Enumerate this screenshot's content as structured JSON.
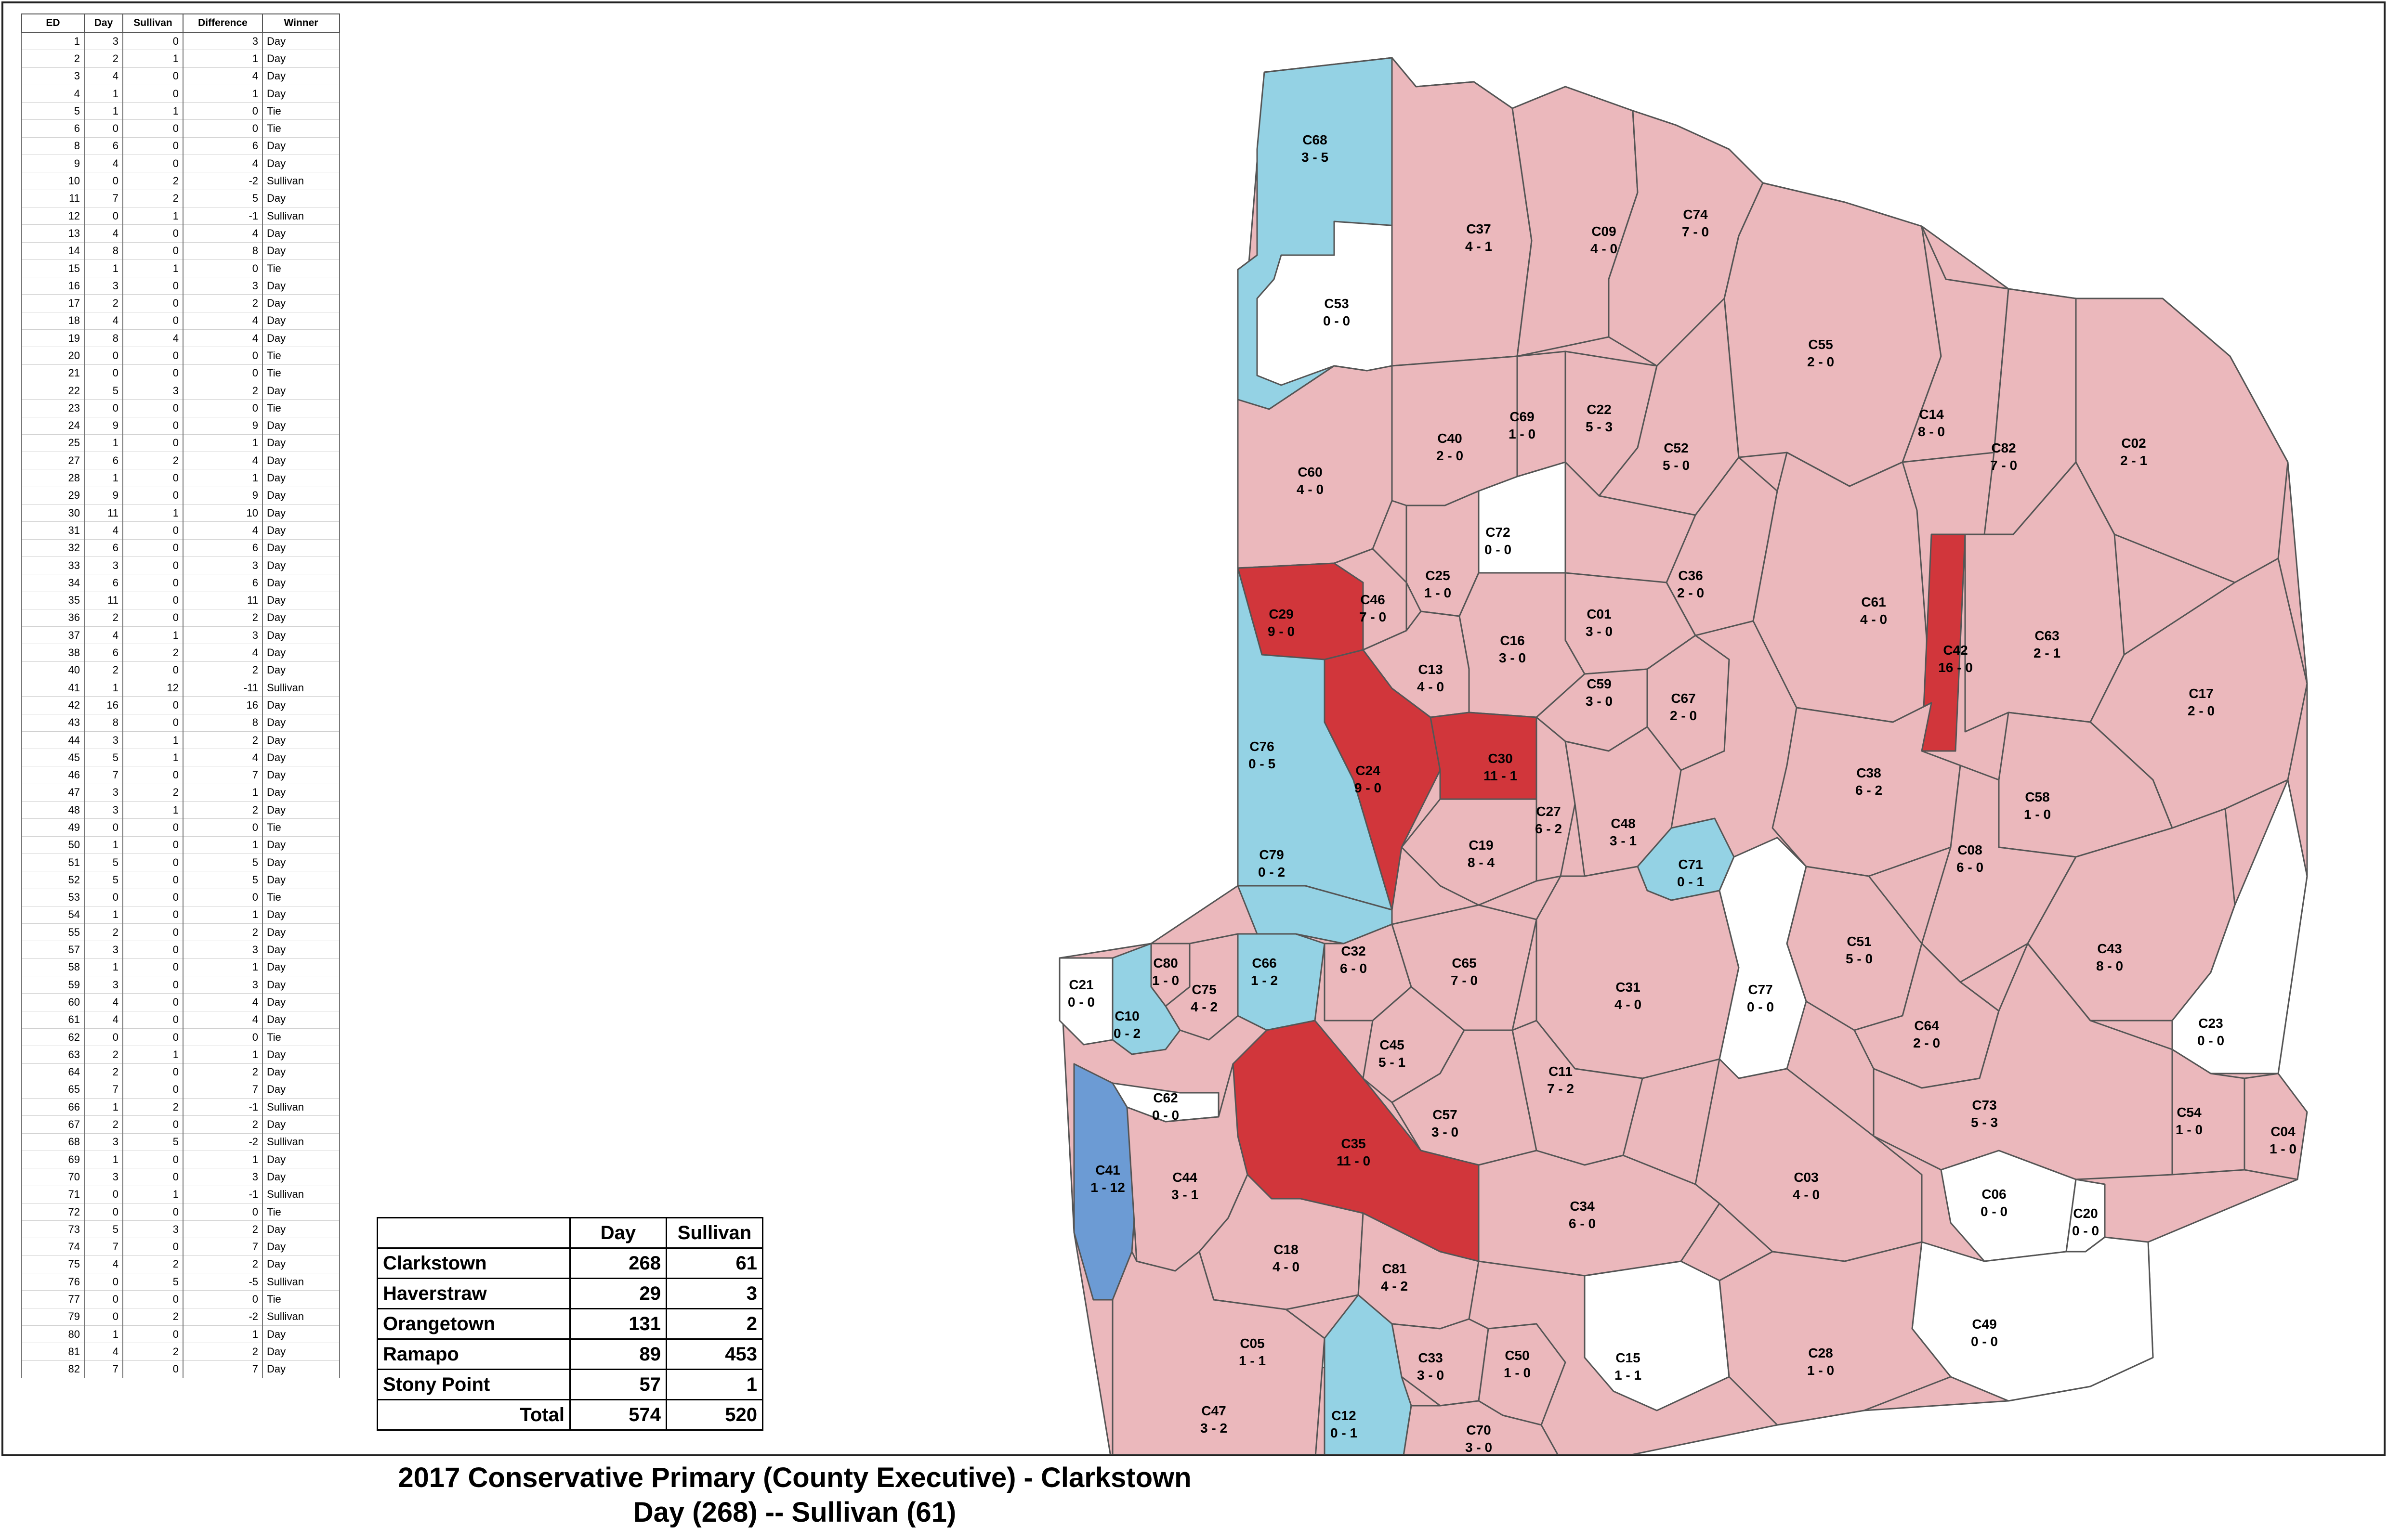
{
  "title": {
    "line1": "2017 Conservative Primary (County Executive) - Clarkstown",
    "line2": "Day (268) -- Sullivan (61)"
  },
  "colors": {
    "day_light": "#ebb8bc",
    "day_strong": "#d1363b",
    "sullivan_light": "#94d2e4",
    "sullivan_strong": "#6c9bd4",
    "tie": "#ffffff"
  },
  "ed_table": {
    "headers": [
      "ED",
      "Day",
      "Sullivan",
      "Difference",
      "Winner"
    ],
    "rows": [
      [
        "1",
        "3",
        "0",
        "3",
        "Day"
      ],
      [
        "2",
        "2",
        "1",
        "1",
        "Day"
      ],
      [
        "3",
        "4",
        "0",
        "4",
        "Day"
      ],
      [
        "4",
        "1",
        "0",
        "1",
        "Day"
      ],
      [
        "5",
        "1",
        "1",
        "0",
        "Tie"
      ],
      [
        "6",
        "0",
        "0",
        "0",
        "Tie"
      ],
      [
        "8",
        "6",
        "0",
        "6",
        "Day"
      ],
      [
        "9",
        "4",
        "0",
        "4",
        "Day"
      ],
      [
        "10",
        "0",
        "2",
        "-2",
        "Sullivan"
      ],
      [
        "11",
        "7",
        "2",
        "5",
        "Day"
      ],
      [
        "12",
        "0",
        "1",
        "-1",
        "Sullivan"
      ],
      [
        "13",
        "4",
        "0",
        "4",
        "Day"
      ],
      [
        "14",
        "8",
        "0",
        "8",
        "Day"
      ],
      [
        "15",
        "1",
        "1",
        "0",
        "Tie"
      ],
      [
        "16",
        "3",
        "0",
        "3",
        "Day"
      ],
      [
        "17",
        "2",
        "0",
        "2",
        "Day"
      ],
      [
        "18",
        "4",
        "0",
        "4",
        "Day"
      ],
      [
        "19",
        "8",
        "4",
        "4",
        "Day"
      ],
      [
        "20",
        "0",
        "0",
        "0",
        "Tie"
      ],
      [
        "21",
        "0",
        "0",
        "0",
        "Tie"
      ],
      [
        "22",
        "5",
        "3",
        "2",
        "Day"
      ],
      [
        "23",
        "0",
        "0",
        "0",
        "Tie"
      ],
      [
        "24",
        "9",
        "0",
        "9",
        "Day"
      ],
      [
        "25",
        "1",
        "0",
        "1",
        "Day"
      ],
      [
        "27",
        "6",
        "2",
        "4",
        "Day"
      ],
      [
        "28",
        "1",
        "0",
        "1",
        "Day"
      ],
      [
        "29",
        "9",
        "0",
        "9",
        "Day"
      ],
      [
        "30",
        "11",
        "1",
        "10",
        "Day"
      ],
      [
        "31",
        "4",
        "0",
        "4",
        "Day"
      ],
      [
        "32",
        "6",
        "0",
        "6",
        "Day"
      ],
      [
        "33",
        "3",
        "0",
        "3",
        "Day"
      ],
      [
        "34",
        "6",
        "0",
        "6",
        "Day"
      ],
      [
        "35",
        "11",
        "0",
        "11",
        "Day"
      ],
      [
        "36",
        "2",
        "0",
        "2",
        "Day"
      ],
      [
        "37",
        "4",
        "1",
        "3",
        "Day"
      ],
      [
        "38",
        "6",
        "2",
        "4",
        "Day"
      ],
      [
        "40",
        "2",
        "0",
        "2",
        "Day"
      ],
      [
        "41",
        "1",
        "12",
        "-11",
        "Sullivan"
      ],
      [
        "42",
        "16",
        "0",
        "16",
        "Day"
      ],
      [
        "43",
        "8",
        "0",
        "8",
        "Day"
      ],
      [
        "44",
        "3",
        "1",
        "2",
        "Day"
      ],
      [
        "45",
        "5",
        "1",
        "4",
        "Day"
      ],
      [
        "46",
        "7",
        "0",
        "7",
        "Day"
      ],
      [
        "47",
        "3",
        "2",
        "1",
        "Day"
      ],
      [
        "48",
        "3",
        "1",
        "2",
        "Day"
      ],
      [
        "49",
        "0",
        "0",
        "0",
        "Tie"
      ],
      [
        "50",
        "1",
        "0",
        "1",
        "Day"
      ],
      [
        "51",
        "5",
        "0",
        "5",
        "Day"
      ],
      [
        "52",
        "5",
        "0",
        "5",
        "Day"
      ],
      [
        "53",
        "0",
        "0",
        "0",
        "Tie"
      ],
      [
        "54",
        "1",
        "0",
        "1",
        "Day"
      ],
      [
        "55",
        "2",
        "0",
        "2",
        "Day"
      ],
      [
        "57",
        "3",
        "0",
        "3",
        "Day"
      ],
      [
        "58",
        "1",
        "0",
        "1",
        "Day"
      ],
      [
        "59",
        "3",
        "0",
        "3",
        "Day"
      ],
      [
        "60",
        "4",
        "0",
        "4",
        "Day"
      ],
      [
        "61",
        "4",
        "0",
        "4",
        "Day"
      ],
      [
        "62",
        "0",
        "0",
        "0",
        "Tie"
      ],
      [
        "63",
        "2",
        "1",
        "1",
        "Day"
      ],
      [
        "64",
        "2",
        "0",
        "2",
        "Day"
      ],
      [
        "65",
        "7",
        "0",
        "7",
        "Day"
      ],
      [
        "66",
        "1",
        "2",
        "-1",
        "Sullivan"
      ],
      [
        "67",
        "2",
        "0",
        "2",
        "Day"
      ],
      [
        "68",
        "3",
        "5",
        "-2",
        "Sullivan"
      ],
      [
        "69",
        "1",
        "0",
        "1",
        "Day"
      ],
      [
        "70",
        "3",
        "0",
        "3",
        "Day"
      ],
      [
        "71",
        "0",
        "1",
        "-1",
        "Sullivan"
      ],
      [
        "72",
        "0",
        "0",
        "0",
        "Tie"
      ],
      [
        "73",
        "5",
        "3",
        "2",
        "Day"
      ],
      [
        "74",
        "7",
        "0",
        "7",
        "Day"
      ],
      [
        "75",
        "4",
        "2",
        "2",
        "Day"
      ],
      [
        "76",
        "0",
        "5",
        "-5",
        "Sullivan"
      ],
      [
        "77",
        "0",
        "0",
        "0",
        "Tie"
      ],
      [
        "79",
        "0",
        "2",
        "-2",
        "Sullivan"
      ],
      [
        "80",
        "1",
        "0",
        "1",
        "Day"
      ],
      [
        "81",
        "4",
        "2",
        "2",
        "Day"
      ],
      [
        "82",
        "7",
        "0",
        "7",
        "Day"
      ]
    ]
  },
  "town_table": {
    "headers": [
      "",
      "Day",
      "Sullivan"
    ],
    "rows": [
      [
        "Clarkstown",
        "268",
        "61"
      ],
      [
        "Haverstraw",
        "29",
        "3"
      ],
      [
        "Orangetown",
        "131",
        "2"
      ],
      [
        "Ramapo",
        "89",
        "453"
      ],
      [
        "Stony Point",
        "57",
        "1"
      ]
    ],
    "total_label": "Total",
    "total_day": "574",
    "total_sullivan": "520"
  },
  "districts": [
    {
      "id": "C68",
      "score": "3 - 5",
      "fill": "sullivan_light"
    },
    {
      "id": "C53",
      "score": "0 - 0",
      "fill": "tie"
    },
    {
      "id": "C37",
      "score": "4 - 1",
      "fill": "day_light"
    },
    {
      "id": "C09",
      "score": "4 - 0",
      "fill": "day_light"
    },
    {
      "id": "C74",
      "score": "7 - 0",
      "fill": "day_light"
    },
    {
      "id": "C55",
      "score": "2 - 0",
      "fill": "day_light"
    },
    {
      "id": "C14",
      "score": "8 - 0",
      "fill": "day_light"
    },
    {
      "id": "C82",
      "score": "7 - 0",
      "fill": "day_light"
    },
    {
      "id": "C02",
      "score": "2 - 1",
      "fill": "day_light"
    },
    {
      "id": "C60",
      "score": "4 - 0",
      "fill": "day_light"
    },
    {
      "id": "C40",
      "score": "2 - 0",
      "fill": "day_light"
    },
    {
      "id": "C69",
      "score": "1 - 0",
      "fill": "day_light"
    },
    {
      "id": "C22",
      "score": "5 - 3",
      "fill": "day_light"
    },
    {
      "id": "C52",
      "score": "5 - 0",
      "fill": "day_light"
    },
    {
      "id": "C72",
      "score": "0 - 0",
      "fill": "tie"
    },
    {
      "id": "C25",
      "score": "1 - 0",
      "fill": "day_light"
    },
    {
      "id": "C36",
      "score": "2 - 0",
      "fill": "day_light"
    },
    {
      "id": "C61",
      "score": "4 - 0",
      "fill": "day_light"
    },
    {
      "id": "C42",
      "score": "16 - 0",
      "fill": "day_strong"
    },
    {
      "id": "C63",
      "score": "2 - 1",
      "fill": "day_light"
    },
    {
      "id": "C29",
      "score": "9 - 0",
      "fill": "day_strong"
    },
    {
      "id": "C46",
      "score": "7 - 0",
      "fill": "day_light"
    },
    {
      "id": "C01",
      "score": "3 - 0",
      "fill": "day_light"
    },
    {
      "id": "C16",
      "score": "3 - 0",
      "fill": "day_light"
    },
    {
      "id": "C13",
      "score": "4 - 0",
      "fill": "day_light"
    },
    {
      "id": "C59",
      "score": "3 - 0",
      "fill": "day_light"
    },
    {
      "id": "C67",
      "score": "2 - 0",
      "fill": "day_light"
    },
    {
      "id": "C17",
      "score": "2 - 0",
      "fill": "day_light"
    },
    {
      "id": "C76",
      "score": "0 - 5",
      "fill": "sullivan_light"
    },
    {
      "id": "C24",
      "score": "9 - 0",
      "fill": "day_strong"
    },
    {
      "id": "C30",
      "score": "11 - 1",
      "fill": "day_strong"
    },
    {
      "id": "C38",
      "score": "6 - 2",
      "fill": "day_light"
    },
    {
      "id": "C58",
      "score": "1 - 0",
      "fill": "day_light"
    },
    {
      "id": "C27",
      "score": "6 - 2",
      "fill": "day_light"
    },
    {
      "id": "C48",
      "score": "3 - 1",
      "fill": "day_light"
    },
    {
      "id": "C08",
      "score": "6 - 0",
      "fill": "day_light"
    },
    {
      "id": "C19",
      "score": "8 - 4",
      "fill": "day_light"
    },
    {
      "id": "C71",
      "score": "0 - 1",
      "fill": "sullivan_light"
    },
    {
      "id": "C79",
      "score": "0 - 2",
      "fill": "sullivan_light"
    },
    {
      "id": "C51",
      "score": "5 - 0",
      "fill": "day_light"
    },
    {
      "id": "C43",
      "score": "8 - 0",
      "fill": "day_light"
    },
    {
      "id": "C80",
      "score": "1 - 0",
      "fill": "day_light"
    },
    {
      "id": "C66",
      "score": "1 - 2",
      "fill": "sullivan_light"
    },
    {
      "id": "C32",
      "score": "6 - 0",
      "fill": "day_light"
    },
    {
      "id": "C65",
      "score": "7 - 0",
      "fill": "day_light"
    },
    {
      "id": "C31",
      "score": "4 - 0",
      "fill": "day_light"
    },
    {
      "id": "C77",
      "score": "0 - 0",
      "fill": "tie"
    },
    {
      "id": "C21",
      "score": "0 - 0",
      "fill": "tie"
    },
    {
      "id": "C75",
      "score": "4 - 2",
      "fill": "day_light"
    },
    {
      "id": "C10",
      "score": "0 - 2",
      "fill": "sullivan_light"
    },
    {
      "id": "C64",
      "score": "2 - 0",
      "fill": "day_light"
    },
    {
      "id": "C23",
      "score": "0 - 0",
      "fill": "tie"
    },
    {
      "id": "C45",
      "score": "5 - 1",
      "fill": "day_light"
    },
    {
      "id": "C11",
      "score": "7 - 2",
      "fill": "day_light"
    },
    {
      "id": "C73",
      "score": "5 - 3",
      "fill": "day_light"
    },
    {
      "id": "C62",
      "score": "0 - 0",
      "fill": "tie"
    },
    {
      "id": "C57",
      "score": "3 - 0",
      "fill": "day_light"
    },
    {
      "id": "C54",
      "score": "1 - 0",
      "fill": "day_light"
    },
    {
      "id": "C04",
      "score": "1 - 0",
      "fill": "day_light"
    },
    {
      "id": "C35",
      "score": "11 - 0",
      "fill": "day_strong"
    },
    {
      "id": "C41",
      "score": "1 - 12",
      "fill": "sullivan_strong"
    },
    {
      "id": "C44",
      "score": "3 - 1",
      "fill": "day_light"
    },
    {
      "id": "C03",
      "score": "4 - 0",
      "fill": "day_light"
    },
    {
      "id": "C06",
      "score": "0 - 0",
      "fill": "tie"
    },
    {
      "id": "C20",
      "score": "0 - 0",
      "fill": "tie"
    },
    {
      "id": "C34",
      "score": "6 - 0",
      "fill": "day_light"
    },
    {
      "id": "C18",
      "score": "4 - 0",
      "fill": "day_light"
    },
    {
      "id": "C81",
      "score": "4 - 2",
      "fill": "day_light"
    },
    {
      "id": "C49",
      "score": "0 - 0",
      "fill": "tie"
    },
    {
      "id": "C05",
      "score": "1 - 1",
      "fill": "tie"
    },
    {
      "id": "C15",
      "score": "1 - 1",
      "fill": "tie"
    },
    {
      "id": "C28",
      "score": "1 - 0",
      "fill": "day_light"
    },
    {
      "id": "C33",
      "score": "3 - 0",
      "fill": "day_light"
    },
    {
      "id": "C50",
      "score": "1 - 0",
      "fill": "day_light"
    },
    {
      "id": "C47",
      "score": "3 - 2",
      "fill": "day_light"
    },
    {
      "id": "C12",
      "score": "0 - 1",
      "fill": "sullivan_light"
    },
    {
      "id": "C70",
      "score": "3 - 0",
      "fill": "day_light"
    }
  ]
}
